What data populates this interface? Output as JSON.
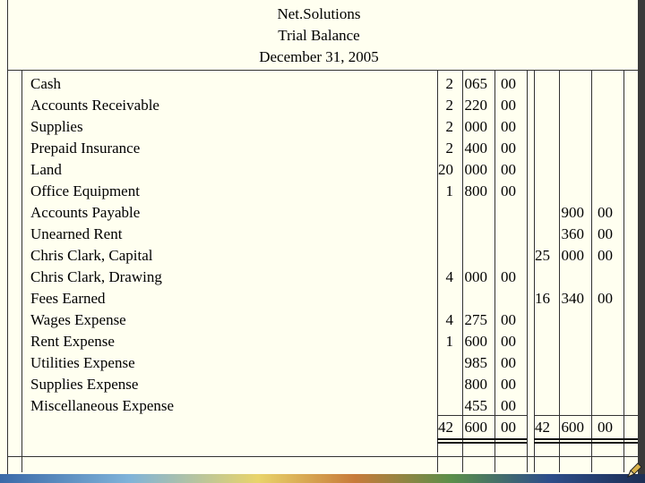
{
  "header": {
    "company": "Net.Solutions",
    "title": "Trial Balance",
    "date": "December 31, 2005"
  },
  "accounts": [
    {
      "name": "Cash",
      "debit": [
        "2",
        "065",
        "00"
      ],
      "credit": [
        "",
        "",
        ""
      ]
    },
    {
      "name": "Accounts Receivable",
      "debit": [
        "2",
        "220",
        "00"
      ],
      "credit": [
        "",
        "",
        ""
      ]
    },
    {
      "name": "Supplies",
      "debit": [
        "2",
        "000",
        "00"
      ],
      "credit": [
        "",
        "",
        ""
      ]
    },
    {
      "name": "Prepaid Insurance",
      "debit": [
        "2",
        "400",
        "00"
      ],
      "credit": [
        "",
        "",
        ""
      ]
    },
    {
      "name": "Land",
      "debit": [
        "20",
        "000",
        "00"
      ],
      "credit": [
        "",
        "",
        ""
      ]
    },
    {
      "name": "Office Equipment",
      "debit": [
        "1",
        "800",
        "00"
      ],
      "credit": [
        "",
        "",
        ""
      ]
    },
    {
      "name": "Accounts Payable",
      "debit": [
        "",
        "",
        ""
      ],
      "credit": [
        "",
        "900",
        "00"
      ]
    },
    {
      "name": "Unearned Rent",
      "debit": [
        "",
        "",
        ""
      ],
      "credit": [
        "",
        "360",
        "00"
      ]
    },
    {
      "name": "Chris Clark, Capital",
      "debit": [
        "",
        "",
        ""
      ],
      "credit": [
        "25",
        "000",
        "00"
      ]
    },
    {
      "name": "Chris Clark, Drawing",
      "debit": [
        "4",
        "000",
        "00"
      ],
      "credit": [
        "",
        "",
        ""
      ]
    },
    {
      "name": "Fees Earned",
      "debit": [
        "",
        "",
        ""
      ],
      "credit": [
        "16",
        "340",
        "00"
      ]
    },
    {
      "name": "Wages Expense",
      "debit": [
        "4",
        "275",
        "00"
      ],
      "credit": [
        "",
        "",
        ""
      ]
    },
    {
      "name": "Rent Expense",
      "debit": [
        "1",
        "600",
        "00"
      ],
      "credit": [
        "",
        "",
        ""
      ]
    },
    {
      "name": "Utilities Expense",
      "debit": [
        "",
        "985",
        "00"
      ],
      "credit": [
        "",
        "",
        ""
      ]
    },
    {
      "name": "Supplies Expense",
      "debit": [
        "",
        "800",
        "00"
      ],
      "credit": [
        "",
        "",
        ""
      ]
    },
    {
      "name": "Miscellaneous Expense",
      "debit": [
        "",
        "455",
        "00"
      ],
      "credit": [
        "",
        "",
        ""
      ]
    }
  ],
  "totals": {
    "debit": [
      "42",
      "600",
      "00"
    ],
    "credit": [
      "42",
      "600",
      "00"
    ]
  }
}
